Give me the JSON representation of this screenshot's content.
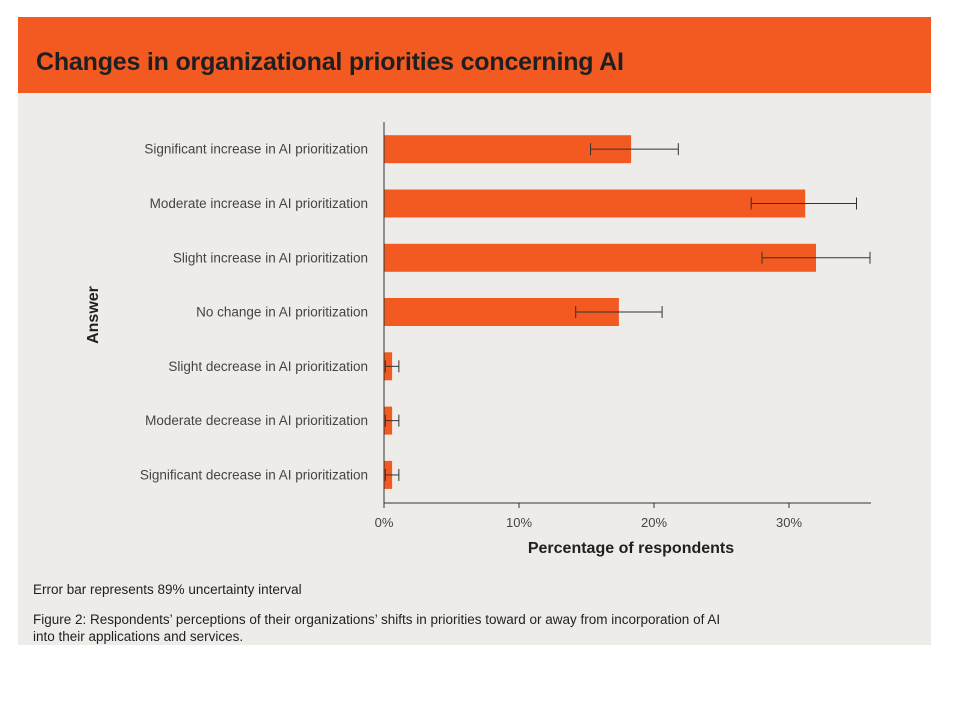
{
  "figure": {
    "title": "Changes in organizational priorities concerning AI",
    "footnote": "Error bar represents 89% uncertainty interval",
    "caption": "Figure 2: Respondents’ perceptions of their organizations’ shifts in priorities toward or away from incorporation of AI into their applications and services."
  },
  "colors": {
    "header": "#f25a22",
    "bar": "#f25a22",
    "background": "#eeece9",
    "axis": "#333333"
  },
  "chart_data": {
    "type": "bar",
    "orientation": "horizontal",
    "xlabel": "Percentage of respondents",
    "ylabel": "Answer",
    "xlim": [
      0,
      36
    ],
    "xticks": [
      0,
      10,
      20,
      30
    ],
    "xtick_labels": [
      "0%",
      "10%",
      "20%",
      "30%"
    ],
    "grid": false,
    "categories": [
      "Significant increase in AI prioritization",
      "Moderate increase in AI prioritization",
      "Slight increase in AI prioritization",
      "No change in AI prioritization",
      "Slight decrease in AI prioritization",
      "Moderate decrease in AI prioritization",
      "Significant decrease in AI prioritization"
    ],
    "values": [
      18.3,
      31.2,
      32.0,
      17.4,
      0.6,
      0.6,
      0.6
    ],
    "error_low": [
      15.3,
      27.2,
      28.0,
      14.2,
      0.1,
      0.1,
      0.1
    ],
    "error_high": [
      21.8,
      35.0,
      36.0,
      20.6,
      1.1,
      1.1,
      1.1
    ]
  }
}
